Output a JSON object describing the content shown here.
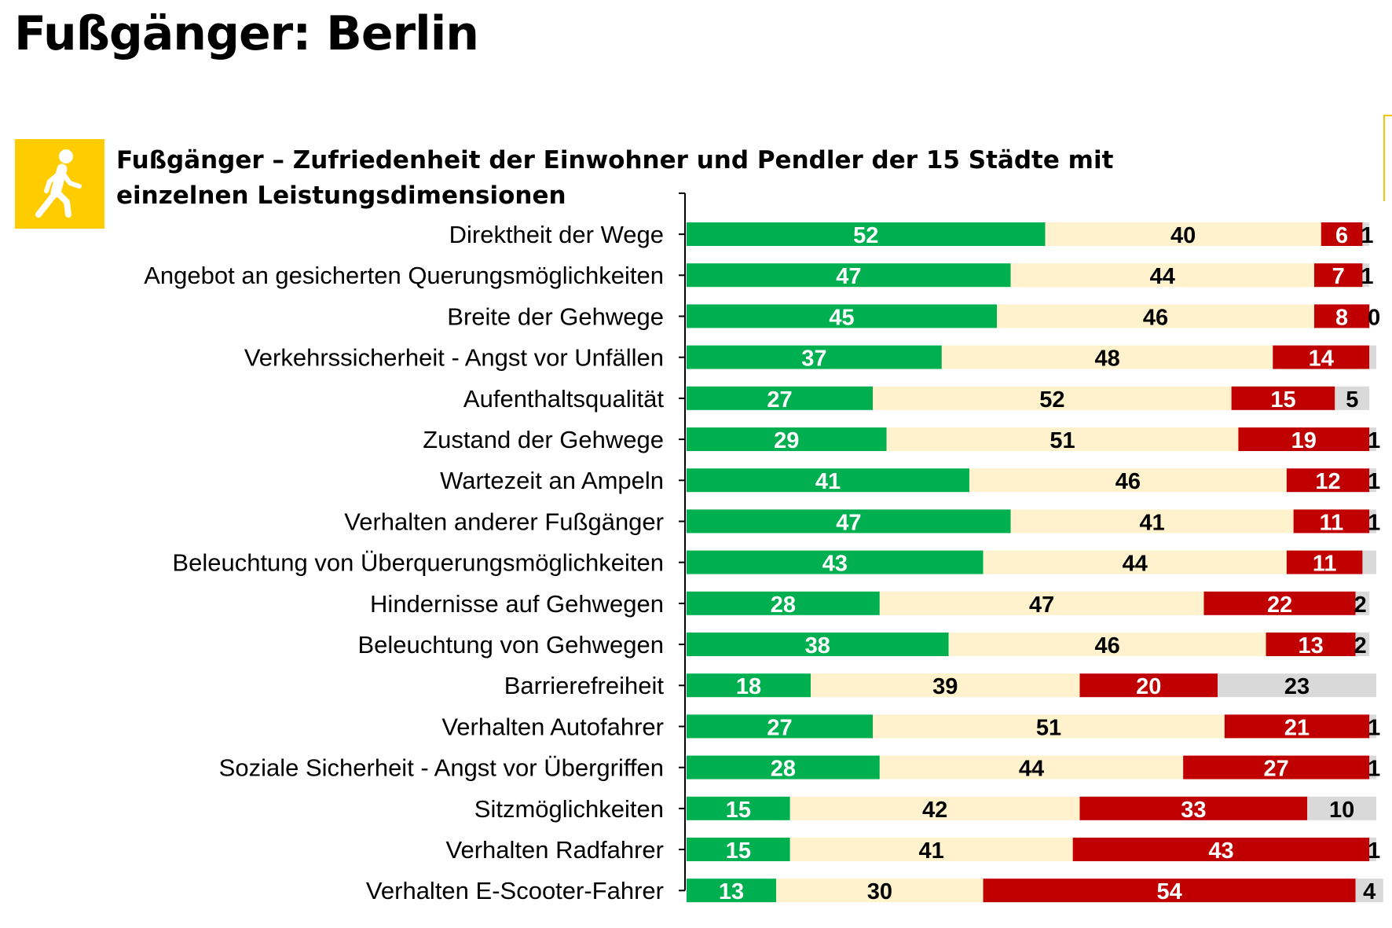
{
  "header": {
    "title": "Fußgänger: Berlin",
    "subtitle": "Fußgänger – Zufriedenheit der Einwohner und Pendler der 15 Städte mit einzelnen Leistungsdimensionen",
    "icon": "pedestrian-walking-icon"
  },
  "colors": {
    "satisfied": "#00B050",
    "neutral": "#FFF2CC",
    "dissatisfied": "#C00000",
    "no_answer": "#D9D9D9",
    "icon_background": "#FFCC00"
  },
  "chart_data": {
    "type": "bar",
    "orientation": "horizontal",
    "stacked": true,
    "title": "Fußgänger – Zufriedenheit der Einwohner und Pendler der 15 Städte mit einzelnen Leistungsdimensionen",
    "xlabel": "",
    "ylabel": "",
    "legend": "none",
    "grid": false,
    "categories": [
      "Direktheit der Wege",
      "Angebot an gesicherten Querungsmöglichkeiten",
      "Breite der Gehwege",
      "Verkehrssicherheit - Angst vor Unfällen",
      "Aufenthaltsqualität",
      "Zustand der Gehwege",
      "Wartezeit an Ampeln",
      "Verhalten anderer Fußgänger",
      "Beleuchtung von Überquerungsmöglichkeiten",
      "Hindernisse auf Gehwegen",
      "Beleuchtung von Gehwegen",
      "Barrierefreiheit",
      "Verhalten Autofahrer",
      "Soziale Sicherheit - Angst vor Übergriffen",
      "Sitzmöglichkeiten",
      "Verhalten Radfahrer",
      "Verhalten E-Scooter-Fahrer"
    ],
    "series": [
      {
        "color": "#00B050",
        "label_color": "#FFFFFF",
        "values": [
          52,
          47,
          45,
          37,
          27,
          29,
          41,
          47,
          43,
          28,
          38,
          18,
          27,
          28,
          15,
          15,
          13
        ],
        "labels": [
          "52",
          "47",
          "45",
          "37",
          "27",
          "29",
          "41",
          "47",
          "43",
          "28",
          "38",
          "18",
          "27",
          "28",
          "15",
          "15",
          "13"
        ]
      },
      {
        "color": "#FFF2CC",
        "label_color": "#000000",
        "values": [
          40,
          44,
          46,
          48,
          52,
          51,
          46,
          41,
          44,
          47,
          46,
          39,
          51,
          44,
          42,
          41,
          30
        ],
        "labels": [
          "40",
          "44",
          "46",
          "48",
          "52",
          "51",
          "46",
          "41",
          "44",
          "47",
          "46",
          "39",
          "51",
          "44",
          "42",
          "41",
          "30"
        ]
      },
      {
        "color": "#C00000",
        "label_color": "#FFFFFF",
        "values": [
          6,
          7,
          8,
          14,
          15,
          19,
          12,
          11,
          11,
          22,
          13,
          20,
          21,
          27,
          33,
          43,
          54
        ],
        "labels": [
          "6",
          "7",
          "8",
          "14",
          "15",
          "19",
          "12",
          "11",
          "11",
          "22",
          "13",
          "20",
          "21",
          "27",
          "33",
          "43",
          "54"
        ]
      },
      {
        "color": "#D9D9D9",
        "label_color": "#000000",
        "values": [
          1,
          1,
          0,
          1,
          5,
          1,
          1,
          1,
          2,
          2,
          2,
          23,
          1,
          1,
          10,
          1,
          4
        ],
        "labels": [
          "1",
          "1",
          "0",
          "",
          "5",
          "1",
          "1",
          "1",
          "",
          "2",
          "2",
          "23",
          "1",
          "1",
          "10",
          "1",
          "4"
        ]
      }
    ],
    "xlim": [
      0,
      100
    ]
  }
}
